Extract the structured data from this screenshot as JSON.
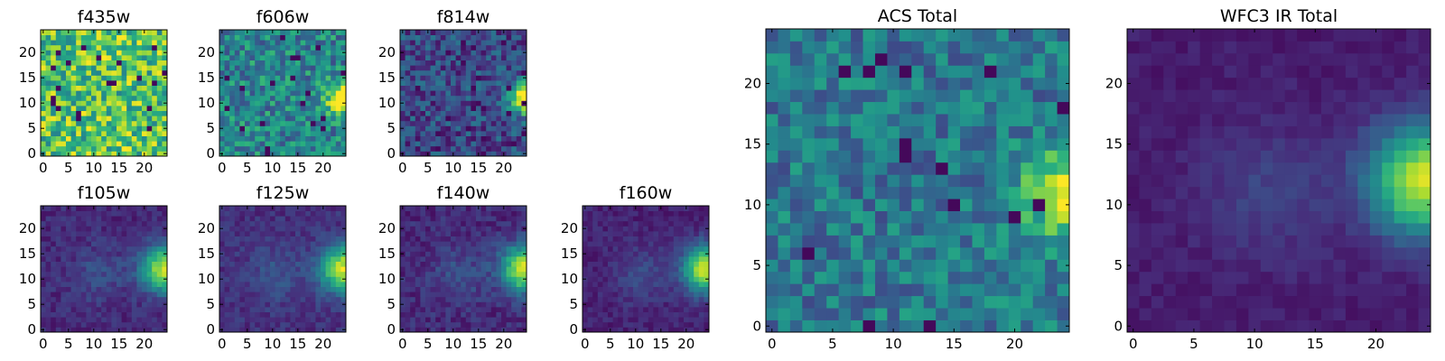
{
  "figure": {
    "type": "heatmap",
    "colormap": "viridis",
    "colormap_stops": [
      "#440154",
      "#472c7a",
      "#3b528b",
      "#2c728e",
      "#21918c",
      "#28ae80",
      "#5ec962",
      "#addc30",
      "#fde725"
    ]
  },
  "chart_data": [
    {
      "type": "heatmap",
      "title": "f435w",
      "grid": [
        25,
        25
      ],
      "xlim": [
        -0.5,
        24.5
      ],
      "ylim": [
        -0.5,
        24.5
      ],
      "xticks": [
        0,
        5,
        10,
        15,
        20
      ],
      "yticks": [
        0,
        5,
        10,
        15,
        20
      ],
      "pattern": "noise",
      "source": {
        "x": 24,
        "y": 11,
        "peak": 0.0
      },
      "background": 0.72,
      "noise": 0.28
    },
    {
      "type": "heatmap",
      "title": "f606w",
      "grid": [
        25,
        25
      ],
      "xlim": [
        -0.5,
        24.5
      ],
      "ylim": [
        -0.5,
        24.5
      ],
      "xticks": [
        0,
        5,
        10,
        15,
        20
      ],
      "yticks": [
        0,
        5,
        10,
        15,
        20
      ],
      "pattern": "noise+source",
      "source": {
        "x": 24,
        "y": 11,
        "peak": 0.75
      },
      "background": 0.45,
      "noise": 0.22
    },
    {
      "type": "heatmap",
      "title": "f814w",
      "grid": [
        25,
        25
      ],
      "xlim": [
        -0.5,
        24.5
      ],
      "ylim": [
        -0.5,
        24.5
      ],
      "xticks": [
        0,
        5,
        10,
        15,
        20
      ],
      "yticks": [
        0,
        5,
        10,
        15,
        20
      ],
      "pattern": "noise+source",
      "source": {
        "x": 24,
        "y": 11,
        "peak": 0.85
      },
      "background": 0.22,
      "noise": 0.18
    },
    {
      "type": "heatmap",
      "title": "f105w",
      "grid": [
        25,
        25
      ],
      "xlim": [
        -0.5,
        24.5
      ],
      "ylim": [
        -0.5,
        24.5
      ],
      "xticks": [
        0,
        5,
        10,
        15,
        20
      ],
      "yticks": [
        0,
        5,
        10,
        15,
        20
      ],
      "pattern": "smooth+source",
      "source": {
        "x": 24,
        "y": 12,
        "peak": 0.78
      },
      "background": 0.12,
      "noise": 0.07
    },
    {
      "type": "heatmap",
      "title": "f125w",
      "grid": [
        25,
        25
      ],
      "xlim": [
        -0.5,
        24.5
      ],
      "ylim": [
        -0.5,
        24.5
      ],
      "xticks": [
        0,
        5,
        10,
        15,
        20
      ],
      "yticks": [
        0,
        5,
        10,
        15,
        20
      ],
      "pattern": "smooth+source",
      "source": {
        "x": 24,
        "y": 12,
        "peak": 0.8
      },
      "background": 0.14,
      "noise": 0.07
    },
    {
      "type": "heatmap",
      "title": "f140w",
      "grid": [
        25,
        25
      ],
      "xlim": [
        -0.5,
        24.5
      ],
      "ylim": [
        -0.5,
        24.5
      ],
      "xticks": [
        0,
        5,
        10,
        15,
        20
      ],
      "yticks": [
        0,
        5,
        10,
        15,
        20
      ],
      "pattern": "smooth+source",
      "source": {
        "x": 24,
        "y": 12,
        "peak": 0.82
      },
      "background": 0.12,
      "noise": 0.08
    },
    {
      "type": "heatmap",
      "title": "f160w",
      "grid": [
        25,
        25
      ],
      "xlim": [
        -0.5,
        24.5
      ],
      "ylim": [
        -0.5,
        24.5
      ],
      "xticks": [
        0,
        5,
        10,
        15,
        20
      ],
      "yticks": [
        0,
        5,
        10,
        15,
        20
      ],
      "pattern": "smooth+source",
      "source": {
        "x": 24,
        "y": 12,
        "peak": 0.85
      },
      "background": 0.1,
      "noise": 0.06
    },
    {
      "type": "heatmap",
      "title": "ACS Total",
      "grid": [
        25,
        25
      ],
      "xlim": [
        -0.5,
        24.5
      ],
      "ylim": [
        -0.5,
        24.5
      ],
      "xticks": [
        0,
        5,
        10,
        15,
        20
      ],
      "yticks": [
        0,
        5,
        10,
        15,
        20
      ],
      "pattern": "noise+source",
      "source": {
        "x": 24,
        "y": 11,
        "peak": 0.6
      },
      "background": 0.4,
      "noise": 0.18
    },
    {
      "type": "heatmap",
      "title": "WFC3 IR Total",
      "grid": [
        25,
        25
      ],
      "xlim": [
        -0.5,
        24.5
      ],
      "ylim": [
        -0.5,
        24.5
      ],
      "xticks": [
        0,
        5,
        10,
        15,
        20
      ],
      "yticks": [
        0,
        5,
        10,
        15,
        20
      ],
      "pattern": "smooth+source",
      "source": {
        "x": 24,
        "y": 12,
        "peak": 0.85
      },
      "background": 0.08,
      "noise": 0.04
    }
  ]
}
